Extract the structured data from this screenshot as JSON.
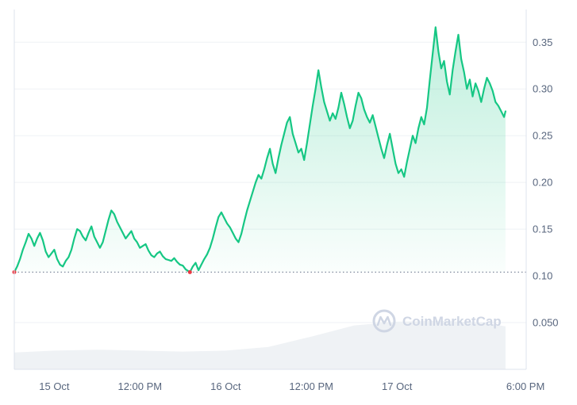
{
  "chart_data": {
    "type": "line",
    "title": "",
    "xlabel": "",
    "ylabel": "",
    "ylim": [
      0.0,
      0.385
    ],
    "y_ticks": [
      "0.35",
      "0.30",
      "0.25",
      "0.20",
      "0.15",
      "0.10",
      "0.050"
    ],
    "y_tick_values": [
      0.35,
      0.3,
      0.25,
      0.2,
      0.15,
      0.1,
      0.05
    ],
    "x_ticks": [
      "15 Oct",
      "12:00 PM",
      "16 Oct",
      "12:00 PM",
      "17 Oct",
      "6:00 PM"
    ],
    "x_tick_hours": [
      0,
      12,
      24,
      36,
      48,
      66
    ],
    "reference_line": 0.104,
    "grid": true,
    "line_color": "#16c784",
    "reference_color": "#808a9d",
    "low_marker_color": "#ea3943",
    "volume_color": "#eff2f5",
    "low_markers": [
      {
        "hour": -5.6,
        "price": 0.104
      },
      {
        "hour": 19.0,
        "price": 0.104
      }
    ],
    "series": [
      {
        "values": [
          [
            -5.6,
            0.104
          ],
          [
            -5.2,
            0.11
          ],
          [
            -4.8,
            0.118
          ],
          [
            -4.4,
            0.128
          ],
          [
            -4.0,
            0.136
          ],
          [
            -3.6,
            0.145
          ],
          [
            -3.2,
            0.14
          ],
          [
            -2.8,
            0.132
          ],
          [
            -2.4,
            0.14
          ],
          [
            -2.0,
            0.146
          ],
          [
            -1.6,
            0.138
          ],
          [
            -1.2,
            0.126
          ],
          [
            -0.8,
            0.12
          ],
          [
            -0.4,
            0.124
          ],
          [
            0.0,
            0.128
          ],
          [
            0.4,
            0.118
          ],
          [
            0.8,
            0.112
          ],
          [
            1.2,
            0.11
          ],
          [
            1.6,
            0.116
          ],
          [
            2.0,
            0.12
          ],
          [
            2.4,
            0.128
          ],
          [
            2.8,
            0.14
          ],
          [
            3.2,
            0.15
          ],
          [
            3.6,
            0.148
          ],
          [
            4.0,
            0.142
          ],
          [
            4.4,
            0.138
          ],
          [
            4.8,
            0.146
          ],
          [
            5.2,
            0.153
          ],
          [
            5.6,
            0.142
          ],
          [
            6.0,
            0.136
          ],
          [
            6.4,
            0.13
          ],
          [
            6.8,
            0.136
          ],
          [
            7.2,
            0.148
          ],
          [
            7.6,
            0.16
          ],
          [
            8.0,
            0.17
          ],
          [
            8.4,
            0.166
          ],
          [
            8.8,
            0.158
          ],
          [
            9.2,
            0.152
          ],
          [
            9.6,
            0.146
          ],
          [
            10.0,
            0.14
          ],
          [
            10.4,
            0.144
          ],
          [
            10.8,
            0.148
          ],
          [
            11.2,
            0.14
          ],
          [
            11.6,
            0.136
          ],
          [
            12.0,
            0.13
          ],
          [
            12.4,
            0.132
          ],
          [
            12.8,
            0.134
          ],
          [
            13.2,
            0.127
          ],
          [
            13.6,
            0.122
          ],
          [
            14.0,
            0.12
          ],
          [
            14.4,
            0.124
          ],
          [
            14.8,
            0.126
          ],
          [
            15.2,
            0.121
          ],
          [
            15.6,
            0.118
          ],
          [
            16.0,
            0.117
          ],
          [
            16.4,
            0.116
          ],
          [
            16.8,
            0.119
          ],
          [
            17.2,
            0.115
          ],
          [
            17.6,
            0.112
          ],
          [
            18.0,
            0.111
          ],
          [
            18.4,
            0.107
          ],
          [
            18.8,
            0.105
          ],
          [
            19.0,
            0.104
          ],
          [
            19.4,
            0.11
          ],
          [
            19.8,
            0.114
          ],
          [
            20.2,
            0.106
          ],
          [
            20.6,
            0.112
          ],
          [
            21.0,
            0.118
          ],
          [
            21.4,
            0.123
          ],
          [
            21.8,
            0.13
          ],
          [
            22.2,
            0.14
          ],
          [
            22.6,
            0.152
          ],
          [
            23.0,
            0.163
          ],
          [
            23.4,
            0.168
          ],
          [
            23.8,
            0.162
          ],
          [
            24.2,
            0.156
          ],
          [
            24.6,
            0.152
          ],
          [
            25.0,
            0.146
          ],
          [
            25.4,
            0.14
          ],
          [
            25.8,
            0.136
          ],
          [
            26.2,
            0.145
          ],
          [
            26.6,
            0.158
          ],
          [
            27.0,
            0.17
          ],
          [
            27.4,
            0.18
          ],
          [
            27.8,
            0.19
          ],
          [
            28.2,
            0.2
          ],
          [
            28.6,
            0.208
          ],
          [
            29.0,
            0.204
          ],
          [
            29.4,
            0.214
          ],
          [
            29.8,
            0.226
          ],
          [
            30.2,
            0.236
          ],
          [
            30.6,
            0.22
          ],
          [
            31.0,
            0.21
          ],
          [
            31.4,
            0.226
          ],
          [
            31.8,
            0.24
          ],
          [
            32.2,
            0.252
          ],
          [
            32.6,
            0.264
          ],
          [
            33.0,
            0.27
          ],
          [
            33.4,
            0.252
          ],
          [
            33.8,
            0.242
          ],
          [
            34.2,
            0.232
          ],
          [
            34.6,
            0.236
          ],
          [
            35.0,
            0.224
          ],
          [
            35.4,
            0.242
          ],
          [
            35.8,
            0.262
          ],
          [
            36.2,
            0.282
          ],
          [
            36.6,
            0.3
          ],
          [
            37.0,
            0.32
          ],
          [
            37.4,
            0.302
          ],
          [
            37.8,
            0.286
          ],
          [
            38.2,
            0.276
          ],
          [
            38.6,
            0.266
          ],
          [
            39.0,
            0.274
          ],
          [
            39.4,
            0.268
          ],
          [
            39.8,
            0.28
          ],
          [
            40.2,
            0.296
          ],
          [
            40.6,
            0.284
          ],
          [
            41.0,
            0.27
          ],
          [
            41.4,
            0.258
          ],
          [
            41.8,
            0.266
          ],
          [
            42.2,
            0.282
          ],
          [
            42.6,
            0.296
          ],
          [
            43.0,
            0.29
          ],
          [
            43.4,
            0.278
          ],
          [
            43.8,
            0.27
          ],
          [
            44.2,
            0.264
          ],
          [
            44.6,
            0.272
          ],
          [
            45.0,
            0.26
          ],
          [
            45.4,
            0.248
          ],
          [
            45.8,
            0.236
          ],
          [
            46.2,
            0.226
          ],
          [
            46.6,
            0.24
          ],
          [
            47.0,
            0.252
          ],
          [
            47.4,
            0.236
          ],
          [
            47.8,
            0.22
          ],
          [
            48.2,
            0.21
          ],
          [
            48.6,
            0.214
          ],
          [
            49.0,
            0.206
          ],
          [
            49.4,
            0.222
          ],
          [
            49.8,
            0.236
          ],
          [
            50.2,
            0.25
          ],
          [
            50.6,
            0.242
          ],
          [
            51.0,
            0.258
          ],
          [
            51.4,
            0.27
          ],
          [
            51.8,
            0.262
          ],
          [
            52.2,
            0.28
          ],
          [
            52.6,
            0.31
          ],
          [
            53.0,
            0.338
          ],
          [
            53.4,
            0.366
          ],
          [
            53.8,
            0.34
          ],
          [
            54.2,
            0.322
          ],
          [
            54.6,
            0.33
          ],
          [
            55.0,
            0.308
          ],
          [
            55.4,
            0.294
          ],
          [
            55.8,
            0.32
          ],
          [
            56.2,
            0.34
          ],
          [
            56.6,
            0.358
          ],
          [
            57.0,
            0.332
          ],
          [
            57.4,
            0.318
          ],
          [
            57.8,
            0.3
          ],
          [
            58.2,
            0.31
          ],
          [
            58.6,
            0.292
          ],
          [
            59.0,
            0.306
          ],
          [
            59.4,
            0.298
          ],
          [
            59.8,
            0.286
          ],
          [
            60.2,
            0.3
          ],
          [
            60.6,
            0.312
          ],
          [
            61.0,
            0.306
          ],
          [
            61.4,
            0.298
          ],
          [
            61.8,
            0.286
          ],
          [
            62.2,
            0.282
          ],
          [
            62.6,
            0.276
          ],
          [
            63.0,
            0.27
          ],
          [
            63.2,
            0.276
          ]
        ]
      }
    ],
    "volume": [
      [
        -5.6,
        0.018
      ],
      [
        0.0,
        0.02
      ],
      [
        6.0,
        0.021
      ],
      [
        12.0,
        0.02
      ],
      [
        18.0,
        0.019
      ],
      [
        24.0,
        0.02
      ],
      [
        30.0,
        0.024
      ],
      [
        36.0,
        0.035
      ],
      [
        42.0,
        0.047
      ],
      [
        48.0,
        0.051
      ],
      [
        54.0,
        0.052
      ],
      [
        60.0,
        0.05
      ],
      [
        63.2,
        0.046
      ]
    ]
  },
  "watermark": {
    "text": "CoinMarketCap"
  },
  "colors": {
    "grid": "#eff2f5",
    "plot_border": "#dde3ec",
    "tick_text": "#58667e",
    "watermark": "#cfd6e4"
  }
}
